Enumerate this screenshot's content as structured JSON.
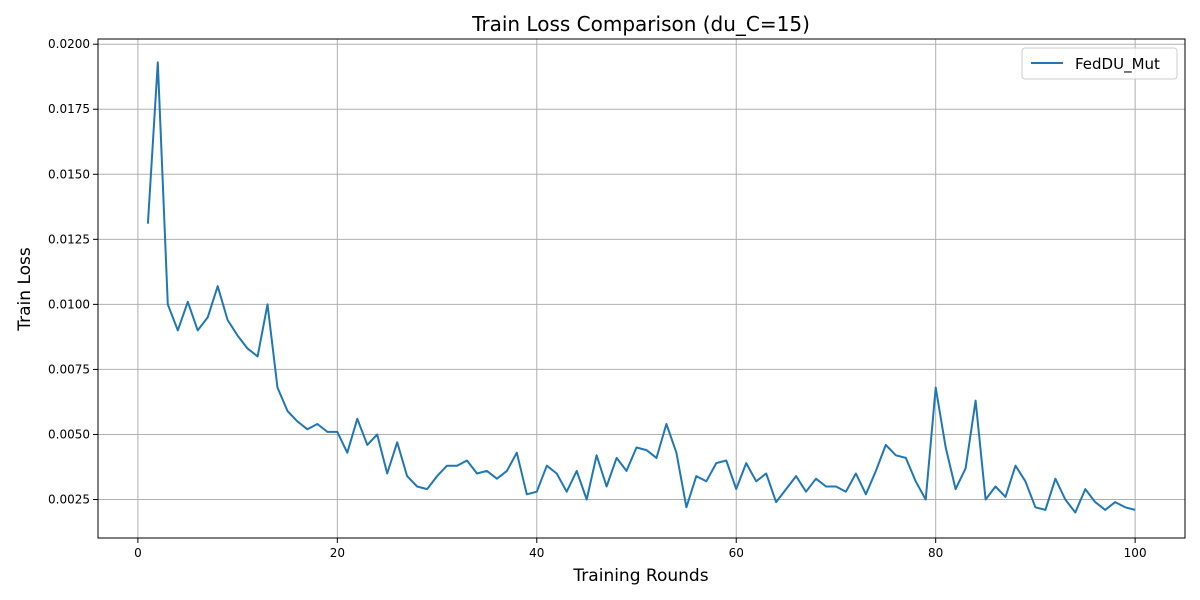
{
  "chart_data": {
    "type": "line",
    "title": "Train Loss Comparison (du_C=15)",
    "xlabel": "Training Rounds",
    "ylabel": "Train Loss",
    "xlim": [
      -4,
      105
    ],
    "ylim": [
      0.00102,
      0.0202
    ],
    "xticks": [
      0,
      20,
      40,
      60,
      80,
      100
    ],
    "xtick_labels": [
      "0",
      "20",
      "40",
      "60",
      "80",
      "100"
    ],
    "yticks": [
      0.0025,
      0.005,
      0.0075,
      0.01,
      0.0125,
      0.015,
      0.0175,
      0.02
    ],
    "ytick_labels": [
      "0.0025",
      "0.0050",
      "0.0075",
      "0.0100",
      "0.0125",
      "0.0150",
      "0.0175",
      "0.0200"
    ],
    "grid": true,
    "legend": "top-right",
    "series": [
      {
        "name": "FedDU_Mut",
        "color": "#1f77b4",
        "x": [
          1,
          2,
          3,
          4,
          5,
          6,
          7,
          8,
          9,
          10,
          11,
          12,
          13,
          14,
          15,
          16,
          17,
          18,
          19,
          20,
          21,
          22,
          23,
          24,
          25,
          26,
          27,
          28,
          29,
          30,
          31,
          32,
          33,
          34,
          35,
          36,
          37,
          38,
          39,
          40,
          41,
          42,
          43,
          44,
          45,
          46,
          47,
          48,
          49,
          50,
          51,
          52,
          53,
          54,
          55,
          56,
          57,
          58,
          59,
          60,
          61,
          62,
          63,
          64,
          65,
          66,
          67,
          68,
          69,
          70,
          71,
          72,
          73,
          74,
          75,
          76,
          77,
          78,
          79,
          80,
          81,
          82,
          83,
          84,
          85,
          86,
          87,
          88,
          89,
          90,
          91,
          92,
          93,
          94,
          95,
          96,
          97,
          98,
          99,
          100
        ],
        "y": [
          0.0131,
          0.0193,
          0.01,
          0.009,
          0.0101,
          0.009,
          0.0095,
          0.0107,
          0.0094,
          0.0088,
          0.0083,
          0.008,
          0.01,
          0.0068,
          0.0059,
          0.0055,
          0.0052,
          0.0054,
          0.0051,
          0.0051,
          0.0043,
          0.0056,
          0.0046,
          0.005,
          0.0035,
          0.0047,
          0.0034,
          0.003,
          0.0029,
          0.0034,
          0.0038,
          0.0038,
          0.004,
          0.0035,
          0.0036,
          0.0033,
          0.0036,
          0.0043,
          0.0027,
          0.0028,
          0.0038,
          0.0035,
          0.0028,
          0.0036,
          0.0025,
          0.0042,
          0.003,
          0.0041,
          0.0036,
          0.0045,
          0.0044,
          0.0041,
          0.0054,
          0.0043,
          0.0022,
          0.0034,
          0.0032,
          0.0039,
          0.004,
          0.0029,
          0.0039,
          0.0032,
          0.0035,
          0.0024,
          0.0029,
          0.0034,
          0.0028,
          0.0033,
          0.003,
          0.003,
          0.0028,
          0.0035,
          0.0027,
          0.0036,
          0.0046,
          0.0042,
          0.0041,
          0.0032,
          0.0025,
          0.0068,
          0.0045,
          0.0029,
          0.0037,
          0.0063,
          0.0025,
          0.003,
          0.0026,
          0.0038,
          0.0032,
          0.0022,
          0.0021,
          0.0033,
          0.0025,
          0.002,
          0.0029,
          0.0024,
          0.0021,
          0.0024,
          0.0022,
          0.0021
        ]
      }
    ]
  }
}
